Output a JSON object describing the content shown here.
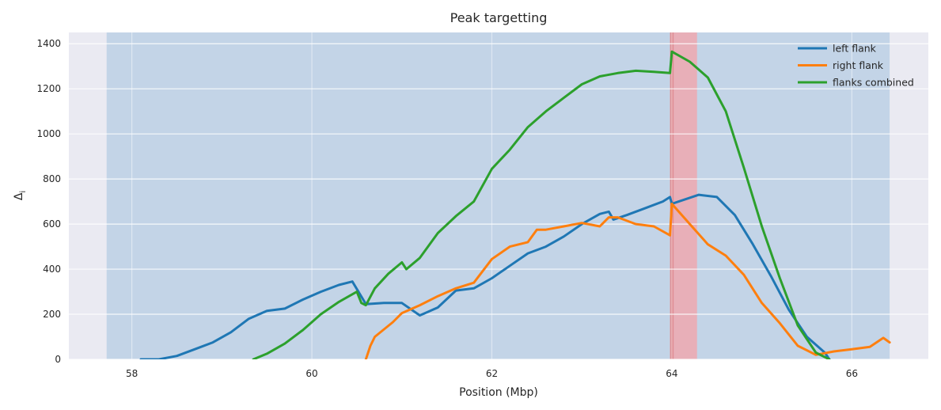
{
  "chart_data": {
    "type": "line",
    "title": "Peak targetting",
    "xlabel": "Position (Mbp)",
    "ylabel": "Δ",
    "ylabel_subscript": "i",
    "xlim": [
      57.3,
      66.85
    ],
    "ylim": [
      0,
      1450
    ],
    "xticks": [
      58,
      60,
      62,
      64,
      66
    ],
    "yticks": [
      0,
      200,
      400,
      600,
      800,
      1000,
      1200,
      1400
    ],
    "grid": true,
    "legend_position": "top-right",
    "background_color": "#eaeaf2",
    "spans": [
      {
        "x0": 57.72,
        "x1": 66.42,
        "color": "#a9c5e0",
        "opacity": 0.6
      },
      {
        "x0": 63.98,
        "x1": 64.28,
        "color": "#f4a3a8",
        "opacity": 0.75
      },
      {
        "x0": 63.98,
        "x1": 64.02,
        "color": "#d9777c",
        "opacity": 0.6
      }
    ],
    "series": [
      {
        "name": "left flank",
        "color": "#1f77b4",
        "x": [
          58.1,
          58.3,
          58.5,
          58.7,
          58.9,
          59.1,
          59.3,
          59.5,
          59.7,
          59.9,
          60.1,
          60.3,
          60.45,
          60.6,
          60.8,
          61.0,
          61.2,
          61.4,
          61.6,
          61.8,
          62.0,
          62.2,
          62.4,
          62.6,
          62.8,
          63.0,
          63.2,
          63.3,
          63.35,
          63.5,
          63.7,
          63.9,
          63.98,
          64.0,
          64.3,
          64.5,
          64.7,
          64.9,
          65.1,
          65.3,
          65.5,
          65.7,
          65.75
        ],
        "y": [
          0,
          0,
          15,
          45,
          75,
          120,
          180,
          215,
          225,
          265,
          300,
          330,
          345,
          245,
          250,
          250,
          195,
          230,
          305,
          315,
          360,
          415,
          470,
          500,
          545,
          600,
          645,
          655,
          620,
          640,
          670,
          700,
          720,
          690,
          730,
          720,
          640,
          510,
          370,
          220,
          100,
          30,
          0
        ]
      },
      {
        "name": "right flank",
        "color": "#ff7f0e",
        "x": [
          60.6,
          60.65,
          60.7,
          60.9,
          61.0,
          61.2,
          61.4,
          61.6,
          61.8,
          62.0,
          62.2,
          62.4,
          62.5,
          62.6,
          62.8,
          63.0,
          63.2,
          63.3,
          63.4,
          63.6,
          63.8,
          63.98,
          64.0,
          64.2,
          64.4,
          64.6,
          64.8,
          65.0,
          65.2,
          65.4,
          65.6,
          65.8,
          66.0,
          66.2,
          66.35,
          66.42
        ],
        "y": [
          0,
          60,
          100,
          165,
          205,
          240,
          280,
          315,
          340,
          445,
          500,
          520,
          575,
          575,
          590,
          605,
          590,
          630,
          630,
          600,
          590,
          550,
          690,
          600,
          510,
          460,
          375,
          250,
          160,
          60,
          20,
          35,
          45,
          55,
          95,
          75
        ]
      },
      {
        "name": "flanks combined",
        "color": "#2ca02c",
        "x": [
          59.35,
          59.5,
          59.7,
          59.9,
          60.1,
          60.3,
          60.5,
          60.55,
          60.6,
          60.7,
          60.85,
          61.0,
          61.05,
          61.2,
          61.4,
          61.6,
          61.8,
          62.0,
          62.2,
          62.4,
          62.6,
          62.8,
          63.0,
          63.2,
          63.4,
          63.6,
          63.8,
          63.98,
          64.0,
          64.2,
          64.4,
          64.6,
          64.8,
          65.0,
          65.2,
          65.4,
          65.6,
          65.75
        ],
        "y": [
          0,
          25,
          70,
          130,
          200,
          255,
          300,
          250,
          240,
          315,
          380,
          430,
          400,
          450,
          560,
          635,
          700,
          845,
          930,
          1030,
          1100,
          1160,
          1220,
          1255,
          1270,
          1280,
          1275,
          1270,
          1365,
          1320,
          1250,
          1100,
          850,
          590,
          360,
          150,
          30,
          0
        ]
      }
    ]
  }
}
